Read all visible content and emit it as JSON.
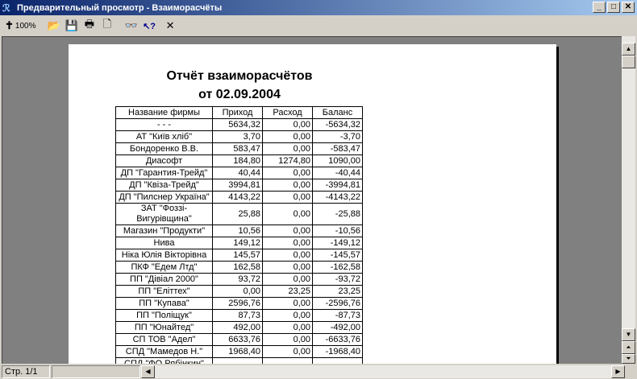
{
  "window": {
    "title": "Предварительный просмотр - Взаиморасчёты",
    "minimize": "_",
    "maximize": "□",
    "close": "✕"
  },
  "toolbar": {
    "zoom_label": "100%",
    "zoom_icon": "✝",
    "open": "📂",
    "save": "💾",
    "print": "🖶",
    "page": "🗋",
    "find": "👓",
    "help": "↖?",
    "close": "✕"
  },
  "report": {
    "title": "Отчёт взаиморасчётов",
    "subtitle": "от 02.09.2004",
    "columns": [
      "Название фирмы",
      "Приход",
      "Расход",
      "Баланс"
    ],
    "rows": [
      [
        "- - -",
        "5634,32",
        "0,00",
        "-5634,32"
      ],
      [
        "АТ \"Київ хліб\"",
        "3,70",
        "0,00",
        "-3,70"
      ],
      [
        "Бондоренко В.В.",
        "583,47",
        "0,00",
        "-583,47"
      ],
      [
        "Диасофт",
        "184,80",
        "1274,80",
        "1090,00"
      ],
      [
        "ДП \"Гарантия-Трейд\"",
        "40,44",
        "0,00",
        "-40,44"
      ],
      [
        "ДП \"Квіза-Трейд\"",
        "3994,81",
        "0,00",
        "-3994,81"
      ],
      [
        "ДП \"Пилснер Україна\"",
        "4143,22",
        "0,00",
        "-4143,22"
      ],
      [
        "ЗАТ \"Фоззі-Вигурівщина\"",
        "25,88",
        "0,00",
        "-25,88"
      ],
      [
        "Магазин \"Продукти\"",
        "10,56",
        "0,00",
        "-10,56"
      ],
      [
        "Нива",
        "149,12",
        "0,00",
        "-149,12"
      ],
      [
        "Ніка Юлія Вікторівна",
        "145,57",
        "0,00",
        "-145,57"
      ],
      [
        "ПКФ \"Едем Лтд\"",
        "162,58",
        "0,00",
        "-162,58"
      ],
      [
        "ПП \"Дівіал 2000\"",
        "93,72",
        "0,00",
        "-93,72"
      ],
      [
        "ПП \"Еліттех\"",
        "0,00",
        "23,25",
        "23,25"
      ],
      [
        "ПП \"Купава\"",
        "2596,76",
        "0,00",
        "-2596,76"
      ],
      [
        "ПП \"Поліщук\"",
        "87,73",
        "0,00",
        "-87,73"
      ],
      [
        "ПП \"Юнайтед\"",
        "492,00",
        "0,00",
        "-492,00"
      ],
      [
        "СП ТОВ \"Адел\"",
        "6633,76",
        "0,00",
        "-6633,76"
      ],
      [
        "СПД \"Мамедов Н.\"",
        "1968,40",
        "0,00",
        "-1968,40"
      ],
      [
        "СПД \"ФО Рябінкин\"",
        "",
        "",
        ""
      ]
    ]
  },
  "status": {
    "page": "Стр. 1/1"
  }
}
